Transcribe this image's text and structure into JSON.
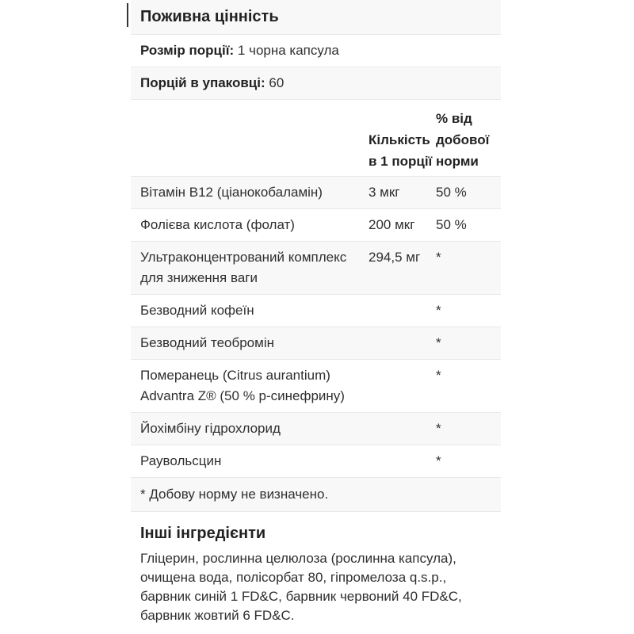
{
  "panel": {
    "title": "Поживна цінність",
    "serving_size_label": "Розмір порції:",
    "serving_size_value": "1 чорна капсула",
    "servings_per_container_label": "Порцій в упаковці:",
    "servings_per_container_value": "60",
    "columns": {
      "amount": "Кількість в 1 порції",
      "daily_value": "% від добової норми"
    },
    "rows": [
      {
        "name": "Вітамін B12 (ціанокобаламін)",
        "amount": "3 мкг",
        "dv": "50 %"
      },
      {
        "name": "Фолієва кислота (фолат)",
        "amount": "200 мкг",
        "dv": "50 %"
      },
      {
        "name": "Ультраконцентрований комплекс для зниження ваги",
        "amount": "294,5 мг",
        "dv": "*"
      },
      {
        "name": "Безводний кофеїн",
        "amount": "",
        "dv": "*"
      },
      {
        "name": "Безводний теобромін",
        "amount": "",
        "dv": "*"
      },
      {
        "name": "Померанець (Citrus aurantium) Advantra Z® (50 % p-синефрину)",
        "amount": "",
        "dv": "*"
      },
      {
        "name": "Йохімбіну гідрохлорид",
        "amount": "",
        "dv": "*"
      },
      {
        "name": "Раувольсцин",
        "amount": "",
        "dv": "*"
      }
    ],
    "footnote": "* Добову норму не визначено."
  },
  "other_ingredients": {
    "title": "Інші інгредієнти",
    "text": "Гліцерин, рослинна целюлоза (рослинна капсула), очищена вода, полісорбат 80, гіпромелоза q.s.p., барвник синій 1 FD&C, барвник червоний 40 FD&C, барвник жовтий 6 FD&C."
  },
  "colors": {
    "stripe": "#f8f8f8",
    "divider": "#e9e9e9",
    "text": "#2f2f2f",
    "heading_text": "#222222"
  }
}
